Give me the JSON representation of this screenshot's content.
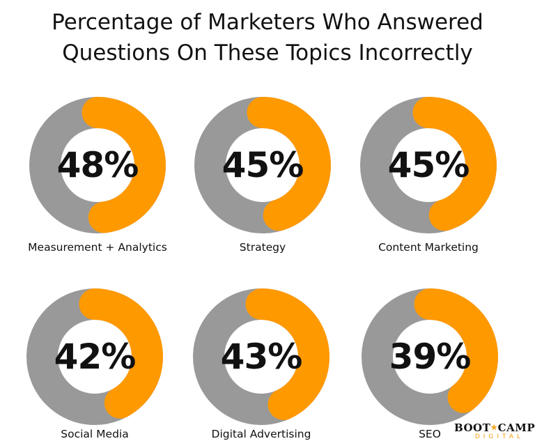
{
  "title_line1": "Percentage of Marketers Who Answered",
  "title_line2": "Questions On These Topics Incorrectly",
  "colors": {
    "ring": "#999999",
    "accent": "#ff9900"
  },
  "logo": {
    "line1_a": "BOOT",
    "star": "★",
    "line1_b": "CAMP",
    "line2": "DIGITAL"
  },
  "chart_data": {
    "type": "pie",
    "title": "Percentage of Marketers Who Answered Questions On These Topics Incorrectly",
    "items": [
      {
        "label": "Measurement + Analytics",
        "value": 48,
        "display": "48%"
      },
      {
        "label": "Strategy",
        "value": 45,
        "display": "45%"
      },
      {
        "label": "Content Marketing",
        "value": 45,
        "display": "45%"
      },
      {
        "label": "Social Media",
        "value": 42,
        "display": "42%"
      },
      {
        "label": "Digital Advertising",
        "value": 43,
        "display": "43%"
      },
      {
        "label": "SEO",
        "value": 39,
        "display": "39%"
      }
    ]
  }
}
